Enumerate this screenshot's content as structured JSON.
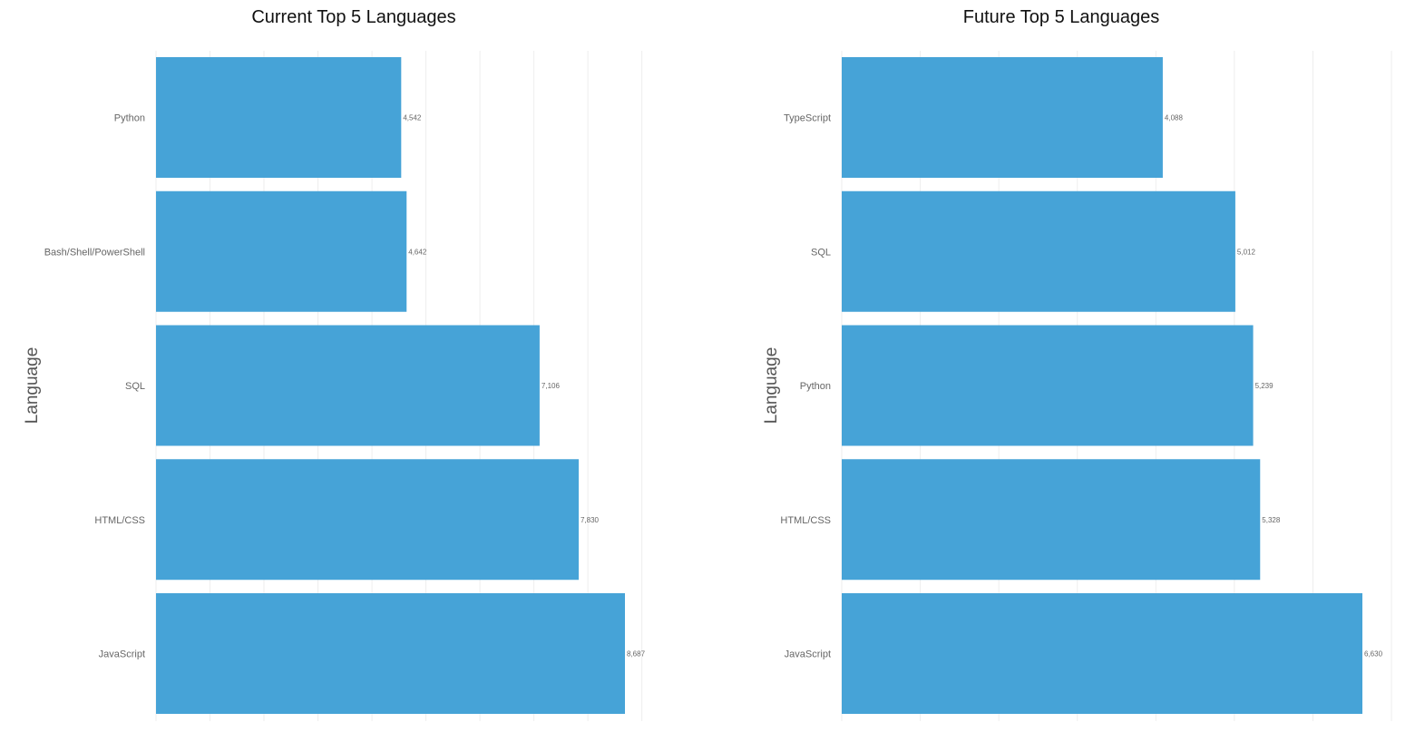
{
  "colors": {
    "bar": "#46a3d7",
    "grid": "#eeeeee",
    "text": "#666666"
  },
  "chart_data": [
    {
      "type": "bar",
      "orientation": "horizontal",
      "title": "Current Top 5 Languages",
      "ylabel": "Language",
      "xlabel": "",
      "categories": [
        "Python",
        "Bash/Shell/PowerShell",
        "SQL",
        "HTML/CSS",
        "JavaScript"
      ],
      "values": [
        4542,
        4642,
        7106,
        7830,
        8687
      ],
      "value_labels": [
        "4,542",
        "4,642",
        "7,106",
        "7,830",
        "8,687"
      ],
      "xlim": [
        0,
        9000
      ],
      "grid": true,
      "x_tick_labels_shown": false
    },
    {
      "type": "bar",
      "orientation": "horizontal",
      "title": "Future Top 5 Languages",
      "ylabel": "Language",
      "xlabel": "",
      "categories": [
        "TypeScript",
        "SQL",
        "Python",
        "HTML/CSS",
        "JavaScript"
      ],
      "values": [
        4088,
        5012,
        5239,
        5328,
        6630
      ],
      "value_labels": [
        "4,088",
        "5,012",
        "5,239",
        "5,328",
        "6,630"
      ],
      "xlim": [
        0,
        7000
      ],
      "grid": true,
      "x_tick_labels_shown": false
    }
  ]
}
